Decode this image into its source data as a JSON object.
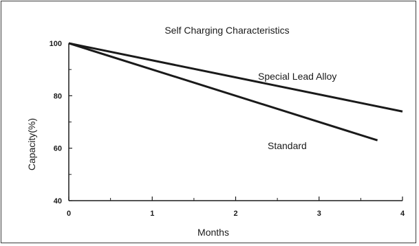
{
  "chart_data": {
    "type": "line",
    "title": "Self Charging Characteristics",
    "xlabel": "Months",
    "ylabel": "Capacity(%)",
    "xlim": [
      0,
      4
    ],
    "ylim": [
      40,
      100
    ],
    "xticks": [
      0,
      1,
      2,
      3,
      4
    ],
    "yticks": [
      40,
      60,
      80,
      100
    ],
    "grid": false,
    "series": [
      {
        "name": "Special Lead Alloy",
        "x": [
          0,
          4
        ],
        "y": [
          100,
          74
        ]
      },
      {
        "name": "Standard",
        "x": [
          0,
          3.7
        ],
        "y": [
          100,
          63
        ]
      }
    ]
  }
}
